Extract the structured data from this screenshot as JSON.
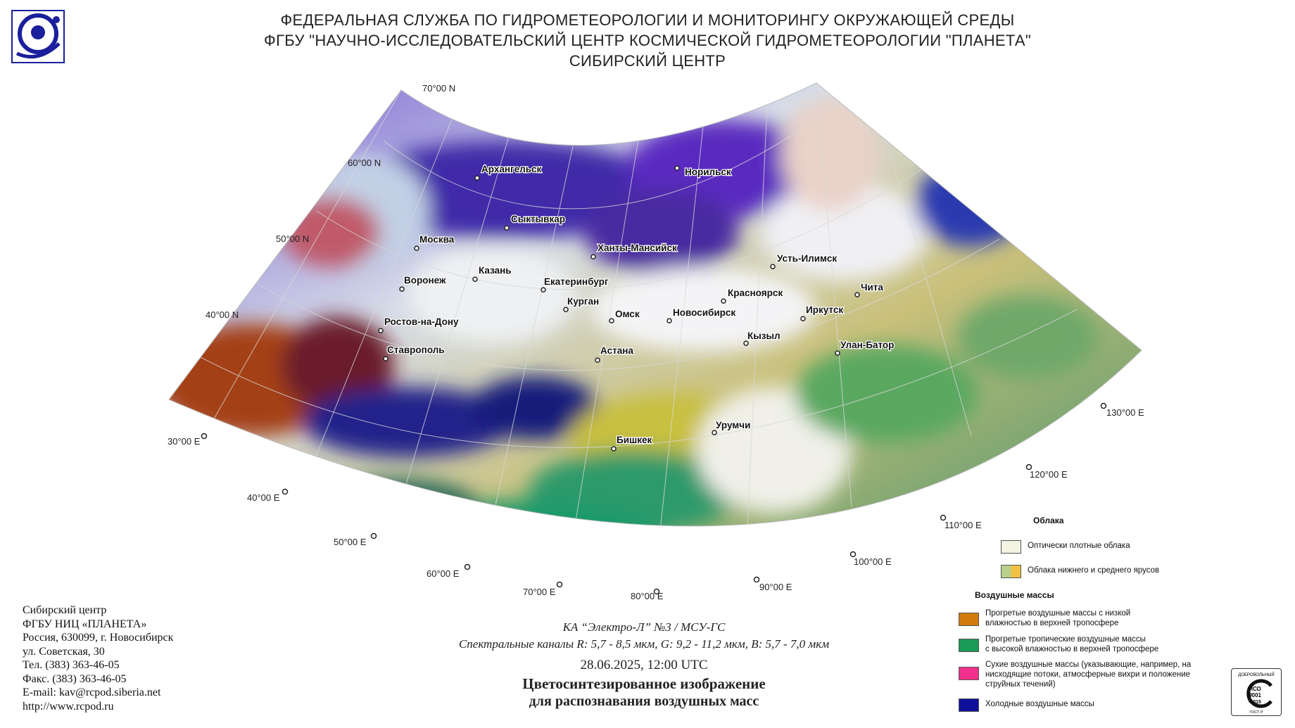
{
  "header": {
    "line1": "ФЕДЕРАЛЬНАЯ СЛУЖБА ПО ГИДРОМЕТЕОРОЛОГИИ И МОНИТОРИНГУ ОКРУЖАЮЩЕЙ СРЕДЫ",
    "line2": "ФГБУ \"НАУЧНО-ИССЛЕДОВАТЕЛЬСКИЙ ЦЕНТР КОСМИЧЕСКОЙ ГИДРОМЕТЕОРОЛОГИИ \"ПЛАНЕТА\"",
    "line3": "СИБИРСКИЙ ЦЕНТР"
  },
  "logo": {
    "icon": "planeta-logo-icon",
    "color": "#1a1f9c"
  },
  "map": {
    "lat_labels": [
      "70°00 N",
      "60°00 N",
      "50°00 N",
      "40°00 N"
    ],
    "lon_labels": [
      "30°00 E",
      "40°00 E",
      "50°00 E",
      "60°00 E",
      "70°00 E",
      "80°00 E",
      "90°00 E",
      "100°00 E",
      "110°00 E",
      "120°00 E",
      "130°00 E"
    ],
    "cities": [
      "Архангельск",
      "Норильск",
      "Сыктывкар",
      "Москва",
      "Ханты-Мансийск",
      "Усть-Илимск",
      "Казань",
      "Воронеж",
      "Екатеринбург",
      "Красноярск",
      "Чита",
      "Курган",
      "Омск",
      "Новосибирск",
      "Иркутск",
      "Ростов-на-Дону",
      "Кызыл",
      "Улан-Батор",
      "Ставрополь",
      "Астана",
      "Урумчи",
      "Бишкек"
    ]
  },
  "contact": {
    "line1": "Сибирский центр",
    "line2": "ФГБУ НИЦ «ПЛАНЕТА»",
    "line3": "Россия, 630099, г. Новосибирск",
    "line4": "ул. Советская, 30",
    "line5": "Тел. (383) 363-46-05",
    "line6": "Факс. (383) 363-46-05",
    "line7": "E-mail: kav@rcpod.siberia.net",
    "line8": "http://www.rcpod.ru"
  },
  "caption": {
    "satellite": "КА “Электро-Л” №3 / МСУ-ГС",
    "channels": "Спектральные каналы R: 5,7 - 8,5 мкм, G: 9,2 - 11,2 мкм, B: 5,7 - 7,0 мкм",
    "datetime": "28.06.2025, 12:00 UTC",
    "title1": "Цветосинтезированное изображение",
    "title2": "для распознавания воздушных масс"
  },
  "legend": {
    "clouds_title": "Облака",
    "clouds": [
      {
        "label": "Оптически плотные облака",
        "color": "#f3f3e4"
      },
      {
        "label": "Облака нижнего и среднего ярусов",
        "color": "#b8d08a",
        "color2": "#f0c040"
      }
    ],
    "air_title": "Воздушные массы",
    "air": [
      {
        "label1": "Прогретые воздушные массы с низкой",
        "label2": "влажностью в верхней тропосфере",
        "label3": "",
        "color": "#d07b0c"
      },
      {
        "label1": "Прогретые тропичеcкие воздушные массы",
        "label2": "с высокой влажностью в верхней тропосфере",
        "label3": "",
        "color": "#1a9a56"
      },
      {
        "label1": "Сухие воздушные массы (указывающие, например, на",
        "label2": "нисходящие потоки, атмосферные вихри и положение",
        "label3": "струйных течений)",
        "color": "#f0308c"
      },
      {
        "label1": "Холодные воздушные массы",
        "label2": "",
        "label3": "",
        "color": "#10109a"
      }
    ]
  },
  "iso_badge": {
    "top": "ДОБРОВОЛЬНЫЙ",
    "name": "ИСО",
    "num": "9001",
    "year": "-2015",
    "bottom": "ГОСТ Р"
  }
}
